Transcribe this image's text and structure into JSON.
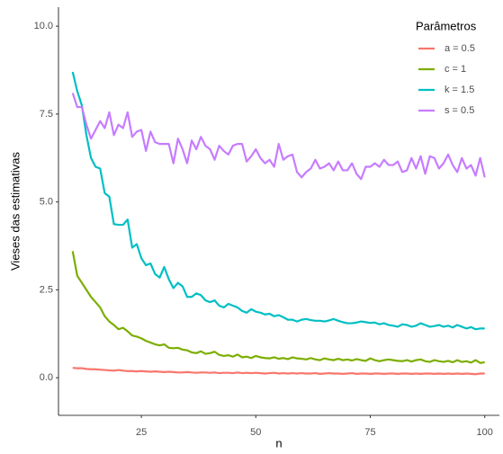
{
  "chart_data": {
    "type": "line",
    "xlabel": "n",
    "ylabel": "Vieses das estimativas",
    "legend_title": "Parâmetros",
    "legend_position": "top-right",
    "xlim": [
      6.9,
      103.2
    ],
    "ylim": [
      -1.07,
      10.54
    ],
    "xticks": [
      25,
      50,
      75,
      100
    ],
    "yticks": [
      {
        "value": 0,
        "label": "0.0"
      },
      2.5,
      {
        "value": 5,
        "label": "5.0"
      },
      7.5,
      {
        "value": 10,
        "label": "10.0"
      }
    ],
    "grid": false,
    "x": [
      10,
      11,
      12,
      13,
      14,
      15,
      16,
      17,
      18,
      19,
      20,
      21,
      22,
      23,
      24,
      25,
      26,
      27,
      28,
      29,
      30,
      31,
      32,
      33,
      34,
      35,
      36,
      37,
      38,
      39,
      40,
      41,
      42,
      43,
      44,
      45,
      46,
      47,
      48,
      49,
      50,
      51,
      52,
      53,
      54,
      55,
      56,
      57,
      58,
      59,
      60,
      61,
      62,
      63,
      64,
      65,
      66,
      67,
      68,
      69,
      70,
      71,
      72,
      73,
      74,
      75,
      76,
      77,
      78,
      79,
      80,
      81,
      82,
      83,
      84,
      85,
      86,
      87,
      88,
      89,
      90,
      91,
      92,
      93,
      94,
      95,
      96,
      97,
      98,
      99,
      100
    ],
    "series": [
      {
        "name": "a = 0.5",
        "color": "#F8766D",
        "values": [
          0.28,
          0.27,
          0.27,
          0.25,
          0.24,
          0.24,
          0.23,
          0.22,
          0.21,
          0.2,
          0.22,
          0.2,
          0.19,
          0.19,
          0.18,
          0.19,
          0.18,
          0.17,
          0.18,
          0.17,
          0.16,
          0.17,
          0.16,
          0.15,
          0.15,
          0.16,
          0.15,
          0.14,
          0.15,
          0.15,
          0.14,
          0.15,
          0.13,
          0.14,
          0.14,
          0.13,
          0.15,
          0.13,
          0.14,
          0.13,
          0.14,
          0.13,
          0.12,
          0.13,
          0.14,
          0.12,
          0.13,
          0.12,
          0.13,
          0.12,
          0.13,
          0.12,
          0.12,
          0.13,
          0.11,
          0.12,
          0.13,
          0.12,
          0.12,
          0.11,
          0.12,
          0.13,
          0.11,
          0.12,
          0.12,
          0.11,
          0.12,
          0.12,
          0.11,
          0.12,
          0.12,
          0.11,
          0.12,
          0.12,
          0.11,
          0.12,
          0.11,
          0.12,
          0.12,
          0.11,
          0.12,
          0.11,
          0.12,
          0.11,
          0.12,
          0.11,
          0.12,
          0.11,
          0.1,
          0.12,
          0.12
        ]
      },
      {
        "name": "c = 1",
        "color": "#7CAE00",
        "values": [
          3.6,
          2.9,
          2.7,
          2.5,
          2.3,
          2.15,
          2.0,
          1.75,
          1.6,
          1.5,
          1.38,
          1.42,
          1.32,
          1.2,
          1.17,
          1.12,
          1.05,
          1.0,
          0.95,
          0.92,
          0.95,
          0.85,
          0.84,
          0.85,
          0.8,
          0.78,
          0.72,
          0.7,
          0.75,
          0.68,
          0.7,
          0.74,
          0.65,
          0.62,
          0.64,
          0.6,
          0.66,
          0.58,
          0.6,
          0.56,
          0.62,
          0.58,
          0.56,
          0.55,
          0.58,
          0.54,
          0.56,
          0.53,
          0.58,
          0.55,
          0.54,
          0.52,
          0.56,
          0.52,
          0.5,
          0.55,
          0.52,
          0.5,
          0.54,
          0.5,
          0.52,
          0.49,
          0.53,
          0.5,
          0.48,
          0.55,
          0.5,
          0.47,
          0.5,
          0.52,
          0.5,
          0.48,
          0.47,
          0.5,
          0.46,
          0.5,
          0.52,
          0.47,
          0.45,
          0.5,
          0.47,
          0.45,
          0.48,
          0.44,
          0.5,
          0.45,
          0.47,
          0.43,
          0.5,
          0.42,
          0.44
        ]
      },
      {
        "name": "k = 1.5",
        "color": "#00BFC4",
        "values": [
          8.7,
          8.15,
          7.75,
          6.9,
          6.25,
          6.0,
          5.95,
          5.25,
          5.15,
          4.37,
          4.35,
          4.35,
          4.5,
          3.7,
          3.8,
          3.4,
          3.2,
          3.25,
          2.95,
          2.85,
          3.15,
          2.8,
          2.55,
          2.7,
          2.6,
          2.3,
          2.3,
          2.4,
          2.35,
          2.2,
          2.15,
          2.2,
          2.05,
          2.0,
          2.1,
          2.05,
          2.0,
          1.9,
          1.85,
          1.95,
          1.88,
          1.85,
          1.8,
          1.82,
          1.75,
          1.78,
          1.72,
          1.65,
          1.65,
          1.6,
          1.65,
          1.67,
          1.64,
          1.62,
          1.62,
          1.6,
          1.63,
          1.67,
          1.62,
          1.58,
          1.55,
          1.55,
          1.57,
          1.6,
          1.58,
          1.56,
          1.57,
          1.52,
          1.55,
          1.5,
          1.48,
          1.45,
          1.52,
          1.5,
          1.45,
          1.48,
          1.55,
          1.5,
          1.45,
          1.47,
          1.5,
          1.45,
          1.48,
          1.43,
          1.5,
          1.45,
          1.4,
          1.44,
          1.38,
          1.4,
          1.4
        ]
      },
      {
        "name": "s = 0.5",
        "color": "#C77CFF",
        "values": [
          8.1,
          7.7,
          7.7,
          7.2,
          6.8,
          7.05,
          7.3,
          7.1,
          7.55,
          6.9,
          7.2,
          7.1,
          7.55,
          6.85,
          7.0,
          7.05,
          6.45,
          7.0,
          6.7,
          6.65,
          6.65,
          6.65,
          6.1,
          6.8,
          6.5,
          6.1,
          6.75,
          6.5,
          6.85,
          6.6,
          6.5,
          6.2,
          6.6,
          6.45,
          6.35,
          6.6,
          6.65,
          6.65,
          6.15,
          6.3,
          6.5,
          6.25,
          6.1,
          6.2,
          6.0,
          6.65,
          6.2,
          6.3,
          6.35,
          5.85,
          5.7,
          5.85,
          5.95,
          6.2,
          5.95,
          6.0,
          6.1,
          5.9,
          6.15,
          5.9,
          5.9,
          6.1,
          5.8,
          5.65,
          6.0,
          6.0,
          6.1,
          6.0,
          6.2,
          6.05,
          6.05,
          6.15,
          5.85,
          5.9,
          6.25,
          5.95,
          6.3,
          5.8,
          6.3,
          6.25,
          5.95,
          6.1,
          6.35,
          6.05,
          5.85,
          6.25,
          5.95,
          6.05,
          5.75,
          6.25,
          5.7
        ]
      }
    ]
  }
}
